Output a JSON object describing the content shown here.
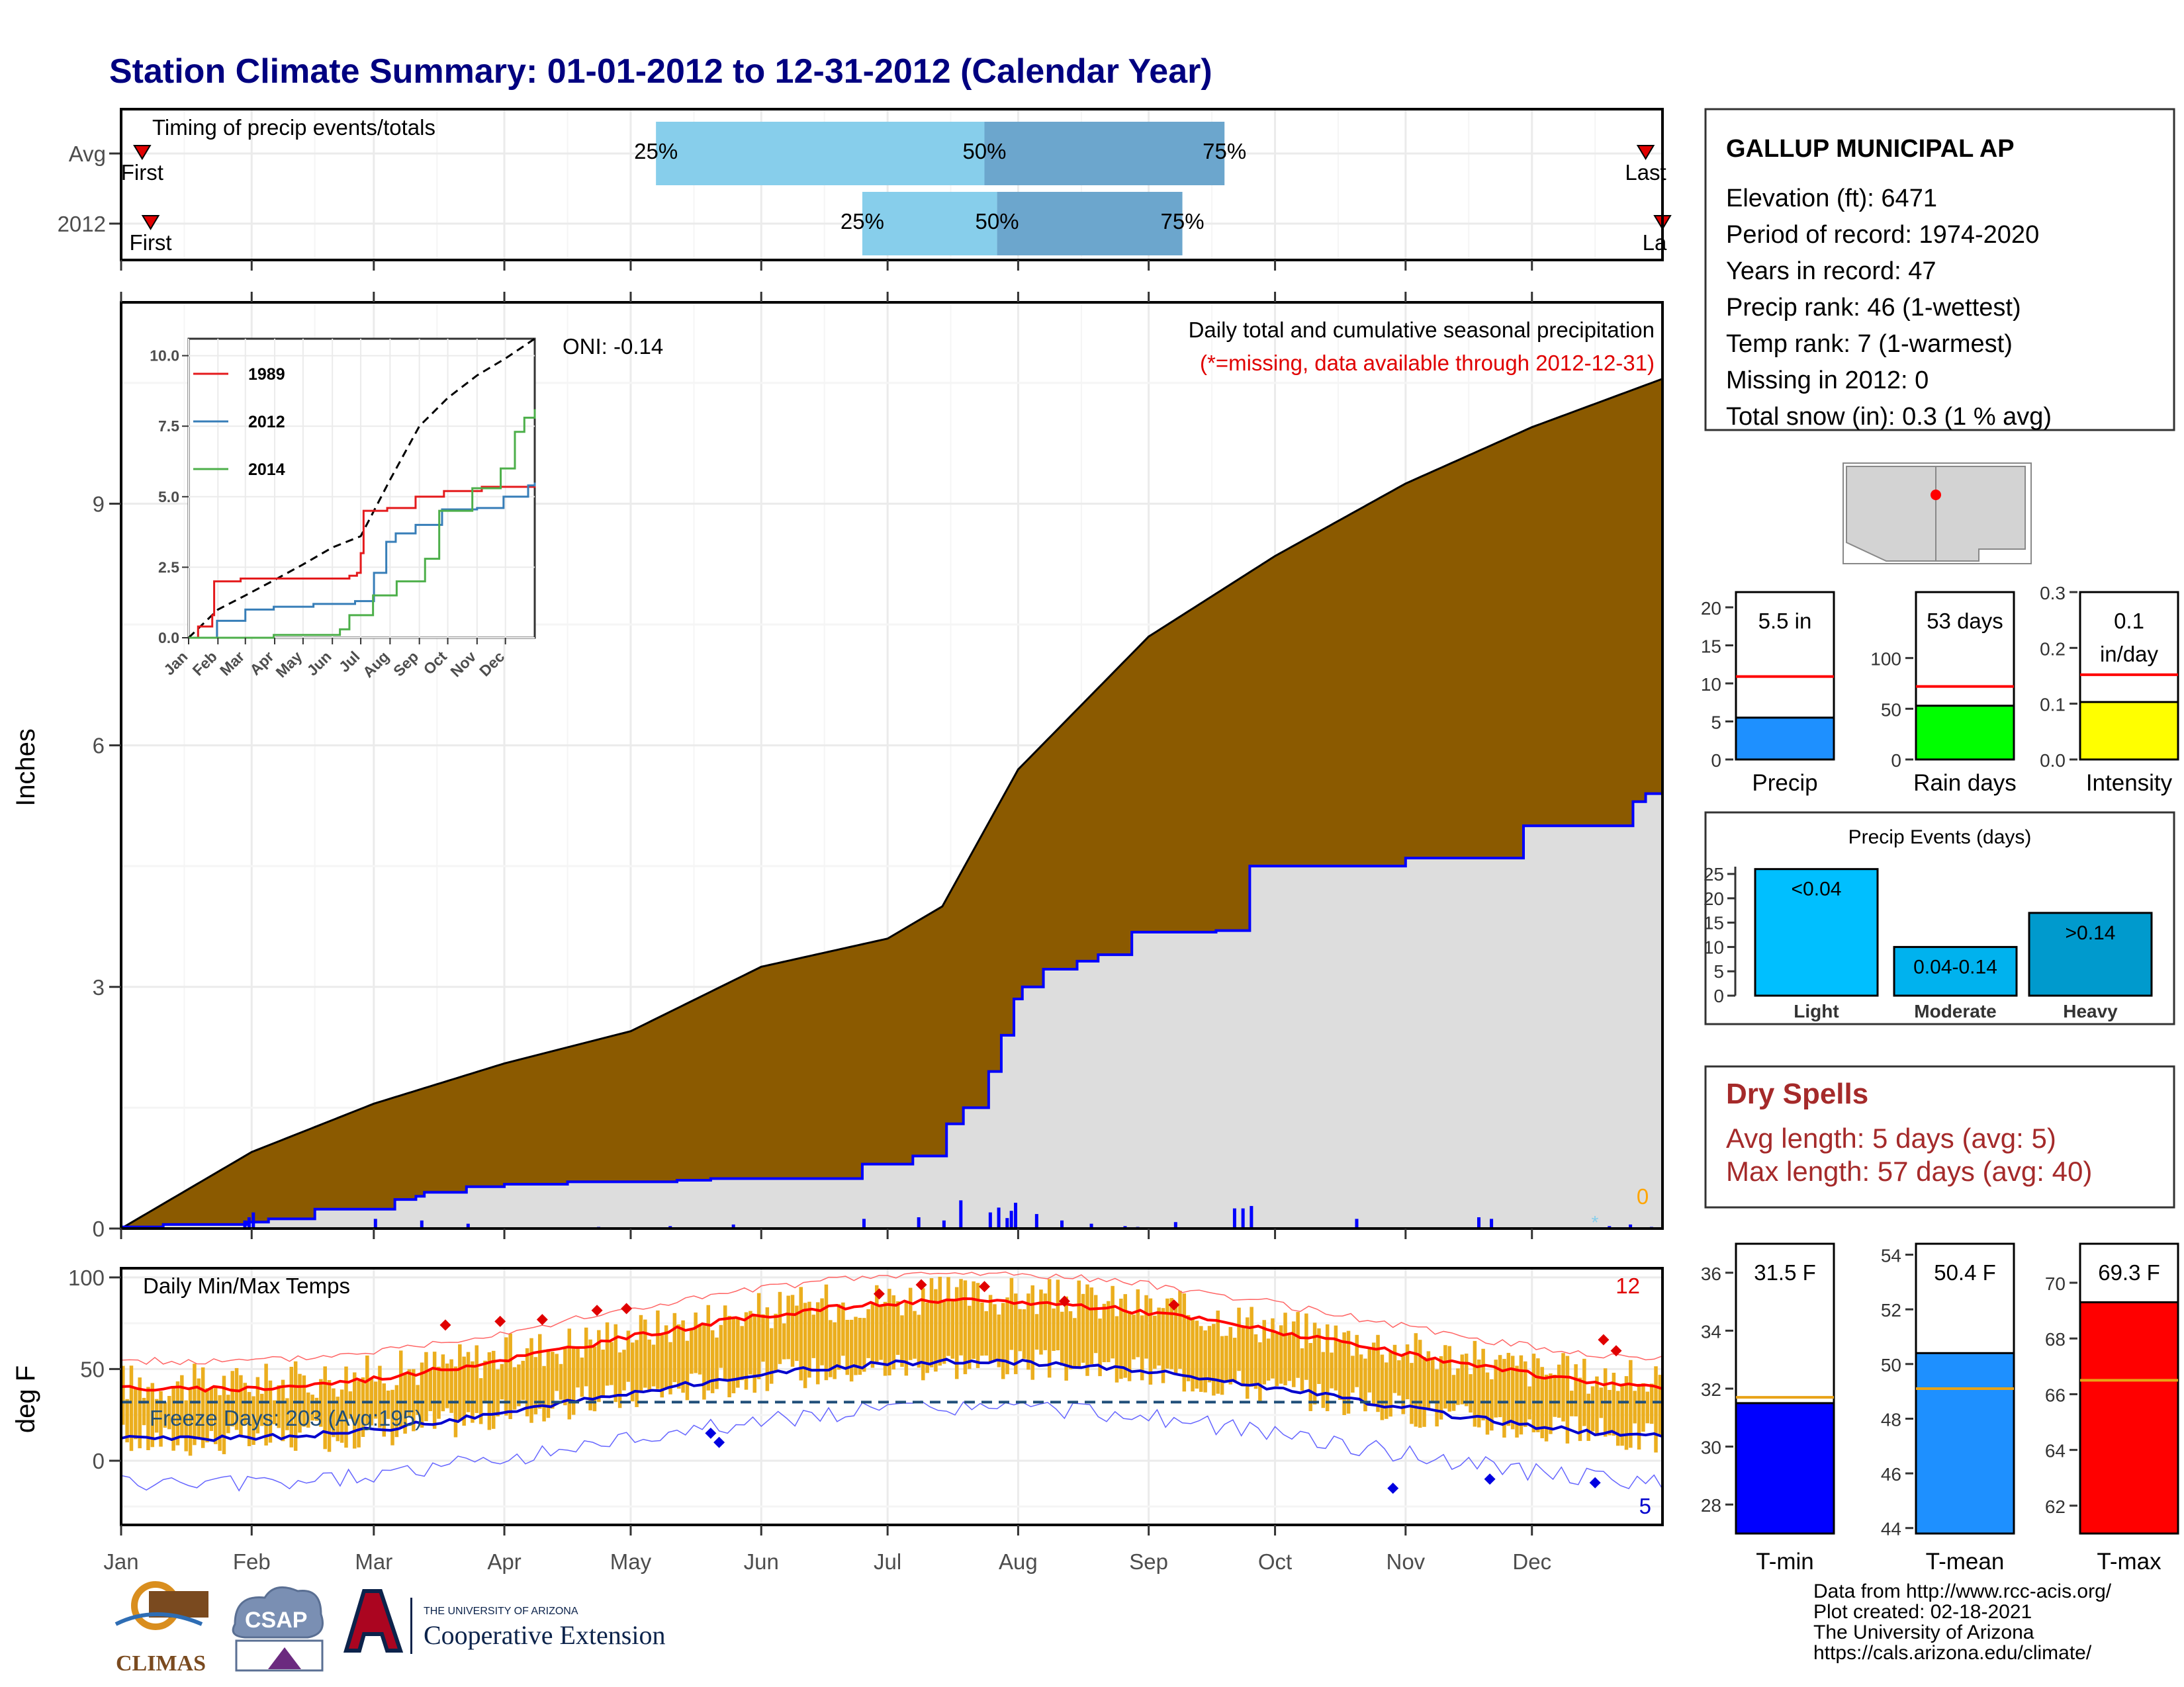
{
  "title": "Station Climate Summary: 01-01-2012 to 12-31-2012 (Calendar Year)",
  "colors": {
    "title": "#000080",
    "precip_cumulative_avg": "#8B5A00",
    "precip_cumulative_2012": "#DDDDDD",
    "daily_precip_bars": "#0000FF",
    "timing_q1": "#87CEEB",
    "timing_q2": "#6CA6CD",
    "temp_range_bars": "#EBAE1E",
    "avg_max_line": "#FF0000",
    "avg_min_line": "#0000CD",
    "dry_spells_text": "#A52A2A"
  },
  "timing_panel": {
    "title": "Timing of precip events/totals",
    "rows": [
      {
        "label": "Avg",
        "first_label": "First",
        "last_label": "Last",
        "first_day": 5,
        "last_day": 362,
        "p25_label": "25%",
        "p50_label": "50%",
        "p75_label": "75%",
        "p25_day": 127,
        "p50_day": 205,
        "p75_day": 262
      },
      {
        "label": "2012",
        "first_label": "First",
        "last_label": "La",
        "first_day": 7,
        "last_day": 366,
        "p25_label": "25%",
        "p50_label": "50%",
        "p75_label": "75%",
        "p25_day": 176,
        "p50_day": 208,
        "p75_day": 252
      }
    ]
  },
  "precip_panel": {
    "ylabel": "Inches",
    "yticks": [
      0,
      3,
      6,
      9
    ],
    "ylim": [
      0,
      11.5
    ],
    "annotation_title": "Daily total and cumulative seasonal precipitation",
    "annotation_missing": "(*=missing, data available through 2012-12-31)",
    "oni": "ONI: -0.14",
    "missing_count": "0"
  },
  "inset": {
    "yticks": [
      "0.0",
      "2.5",
      "5.0",
      "7.5",
      "10.0"
    ],
    "months": [
      "Jan",
      "Feb",
      "Mar",
      "Apr",
      "May",
      "Jun",
      "Jul",
      "Aug",
      "Sep",
      "Oct",
      "Nov",
      "Dec"
    ],
    "legend": [
      {
        "name": "1989",
        "color": "#E41A1C"
      },
      {
        "name": "2012",
        "color": "#377EB8"
      },
      {
        "name": "2014",
        "color": "#4DAF4A"
      }
    ]
  },
  "temp_panel": {
    "ylabel": "deg F",
    "title": "Daily Min/Max Temps",
    "yticks": [
      0,
      50,
      100
    ],
    "ylim": [
      -35,
      105
    ],
    "freeze_label": "Freeze Days: 203 (Avg:195)",
    "freeze_line": 32,
    "record_high_count": "12",
    "record_low_count": "5"
  },
  "months": [
    "Jan",
    "Feb",
    "Mar",
    "Apr",
    "May",
    "Jun",
    "Jul",
    "Aug",
    "Sep",
    "Oct",
    "Nov",
    "Dec"
  ],
  "station": {
    "name": "GALLUP MUNICIPAL AP",
    "lines": [
      "Elevation (ft): 6471",
      "Period of record: 1974-2020",
      "Years in record: 47",
      "Precip rank: 46 (1-wettest)",
      "Temp rank: 7 (1-warmest)",
      "Missing in 2012: 0",
      "Total snow (in): 0.3 (1 % avg)"
    ]
  },
  "summary_bars": [
    {
      "label": "Precip",
      "value_label": "5.5 in",
      "value": 5.5,
      "avg": 10.9,
      "ymax": 22,
      "yticks": [
        "0",
        "5",
        "10",
        "15",
        "20"
      ],
      "tickvals": [
        0,
        5,
        10,
        15,
        20
      ],
      "color": "#1E90FF"
    },
    {
      "label": "Rain days",
      "value_label": "53 days",
      "value": 53,
      "avg": 72,
      "ymax": 165,
      "yticks": [
        "0",
        "50",
        "100"
      ],
      "tickvals": [
        0,
        50,
        100
      ],
      "color": "#00FF00"
    },
    {
      "label": "Intensity",
      "value_label": "0.1",
      "value_label2": "in/day",
      "value": 0.103,
      "avg": 0.152,
      "ymax": 0.3,
      "yticks": [
        "0.0",
        "0.1",
        "0.2",
        "0.3"
      ],
      "tickvals": [
        0,
        0.1,
        0.2,
        0.3
      ],
      "color": "#FFFF00"
    }
  ],
  "precip_events": {
    "title": "Precip Events (days)",
    "yticks": [
      0,
      5,
      10,
      15,
      20,
      25
    ],
    "categories": [
      {
        "name": "Light",
        "label": "<0.04",
        "value": 26,
        "color": "#00BFFF"
      },
      {
        "name": "Moderate",
        "label": "0.04-0.14",
        "value": 10,
        "color": "#00B2EE"
      },
      {
        "name": "Heavy",
        "label": ">0.14",
        "value": 17,
        "color": "#009ACD"
      }
    ]
  },
  "dry_spells": {
    "title": "Dry Spells",
    "avg_line": "Avg length: 5 days (avg: 5)",
    "max_line": "Max length: 57 days (avg: 40)"
  },
  "temp_bars": [
    {
      "label": "T-min",
      "value_label": "31.5 F",
      "value": 31.5,
      "avg": 31.7,
      "ylim": [
        27,
        37
      ],
      "yticks": [
        28,
        30,
        32,
        34,
        36
      ],
      "color": "#0000FF"
    },
    {
      "label": "T-mean",
      "value_label": "50.4 F",
      "value": 50.4,
      "avg": 49.1,
      "ylim": [
        43.8,
        54.4
      ],
      "yticks": [
        44,
        46,
        48,
        50,
        52,
        54
      ],
      "color": "#1E90FF"
    },
    {
      "label": "T-max",
      "value_label": "69.3 F",
      "value": 69.3,
      "avg": 66.5,
      "ylim": [
        61,
        71.4
      ],
      "yticks": [
        62,
        64,
        66,
        68,
        70
      ],
      "color": "#FF0000"
    }
  ],
  "footer": {
    "credits": [
      "Data from http://www.rcc-acis.org/",
      "Plot created: 02-18-2021",
      "The University of Arizona",
      "https://cals.arizona.edu/climate/"
    ],
    "logo_climas": "CLIMAS",
    "logo_csap": "CSAP",
    "logo_ua_small": "THE UNIVERSITY OF ARIZONA",
    "logo_ua_big": "Cooperative Extension"
  }
}
